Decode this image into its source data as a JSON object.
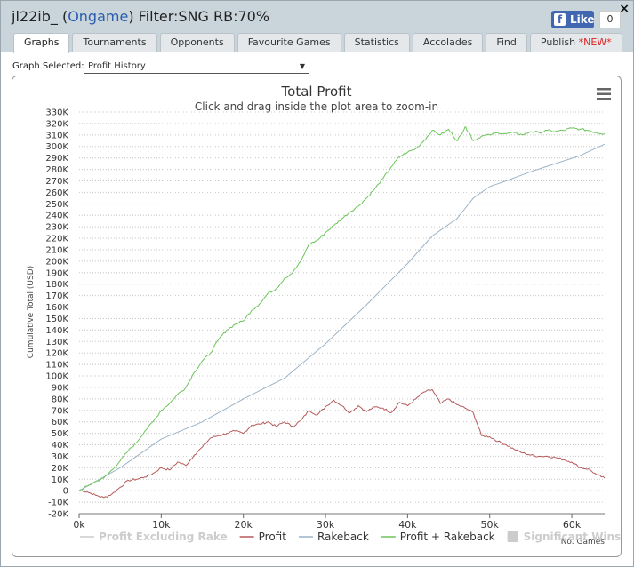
{
  "window": {
    "player": "jl22ib_",
    "open_paren": " (",
    "site": "Ongame",
    "filter_text": ") Filter:SNG RB:70%",
    "close": "×"
  },
  "facebook": {
    "f": "f",
    "like": "Like",
    "count": "0"
  },
  "tabs": [
    {
      "label": "Graphs",
      "active": true
    },
    {
      "label": "Tournaments"
    },
    {
      "label": "Opponents"
    },
    {
      "label": "Favourite Games"
    },
    {
      "label": "Statistics"
    },
    {
      "label": "Accolades"
    },
    {
      "label": "Find"
    },
    {
      "label": "Publish",
      "badge": "*NEW*"
    }
  ],
  "graph_selector": {
    "label": "Graph Selected:",
    "value": "Profit History"
  },
  "chart_data": {
    "type": "line",
    "title": "Total Profit",
    "subtitle": "Click and drag inside the plot area to zoom-in",
    "xlabel": "No. Games",
    "ylabel": "Cumulative Total (USD)",
    "xlim": [
      0,
      64000
    ],
    "ylim": [
      -20000,
      330000
    ],
    "y_ticks": [
      "-20K",
      "-10K",
      "0",
      "10K",
      "20K",
      "30K",
      "40K",
      "50K",
      "60K",
      "70K",
      "80K",
      "90K",
      "100K",
      "110K",
      "120K",
      "130K",
      "140K",
      "150K",
      "160K",
      "170K",
      "180K",
      "190K",
      "200K",
      "210K",
      "220K",
      "230K",
      "240K",
      "250K",
      "260K",
      "270K",
      "280K",
      "290K",
      "300K",
      "310K",
      "320K",
      "330K"
    ],
    "x_ticks": [
      "0k",
      "10k",
      "20k",
      "30k",
      "40k",
      "50k",
      "60k"
    ],
    "grid": "horizontal-dotted",
    "legend": "bottom",
    "legend_items": [
      {
        "name": "Profit Excluding Rake",
        "color": "#cfcfcf",
        "hidden": true
      },
      {
        "name": "Profit",
        "color": "#b55a5a"
      },
      {
        "name": "Rakeback",
        "color": "#9bb3c8"
      },
      {
        "name": "Profit + Rakeback",
        "color": "#6cc55a"
      },
      {
        "name": "Significant Wins",
        "color": "#cccccc",
        "hidden": true,
        "symbol": "square"
      }
    ],
    "series": [
      {
        "name": "Profit",
        "color": "#b55a5a",
        "x": [
          0,
          1000,
          2000,
          3000,
          4000,
          5000,
          6000,
          7000,
          8000,
          9000,
          10000,
          11000,
          12000,
          13000,
          14000,
          15000,
          16000,
          17000,
          18000,
          19000,
          20000,
          21000,
          22000,
          23000,
          24000,
          25000,
          26000,
          27000,
          28000,
          29000,
          30000,
          31000,
          32000,
          33000,
          34000,
          35000,
          36000,
          37000,
          38000,
          39000,
          40000,
          41000,
          42000,
          43000,
          44000,
          45000,
          46000,
          47000,
          48000,
          49000,
          50000,
          51000,
          52000,
          53000,
          54000,
          55000,
          56000,
          57000,
          58000,
          59000,
          60000,
          61000,
          62000,
          63000,
          64000
        ],
        "y": [
          0,
          -1000,
          -4000,
          -6000,
          -3000,
          3000,
          9000,
          10000,
          12000,
          15000,
          20000,
          18000,
          25000,
          22000,
          31000,
          38000,
          46000,
          48000,
          50000,
          52000,
          50000,
          57000,
          58000,
          60000,
          56000,
          60000,
          56000,
          61000,
          70000,
          66000,
          73000,
          79000,
          74000,
          68000,
          74000,
          69000,
          73000,
          72000,
          68000,
          77000,
          74000,
          80000,
          86000,
          88000,
          76000,
          80000,
          75000,
          72000,
          68000,
          48000,
          47000,
          43000,
          40000,
          36000,
          33000,
          31000,
          30000,
          30000,
          29000,
          27000,
          25000,
          20000,
          19000,
          14000,
          11000
        ]
      },
      {
        "name": "Rakeback",
        "color": "#9bb3c8",
        "x": [
          0,
          5000,
          10000,
          15000,
          20000,
          25000,
          30000,
          35000,
          40000,
          43000,
          46000,
          48000,
          50000,
          52000,
          55000,
          58000,
          61000,
          64000
        ],
        "y": [
          0,
          20000,
          45000,
          60000,
          80000,
          98000,
          128000,
          162000,
          198000,
          222000,
          237000,
          255000,
          265000,
          270000,
          278000,
          285000,
          292000,
          302000
        ]
      },
      {
        "name": "Profit + Rakeback",
        "color": "#6cc55a",
        "x": [
          0,
          1000,
          2000,
          3000,
          4000,
          5000,
          6000,
          7000,
          8000,
          9000,
          10000,
          11000,
          12000,
          13000,
          14000,
          15000,
          16000,
          17000,
          18000,
          19000,
          20000,
          21000,
          22000,
          23000,
          24000,
          25000,
          26000,
          27000,
          28000,
          29000,
          30000,
          31000,
          32000,
          33000,
          34000,
          35000,
          36000,
          37000,
          38000,
          39000,
          40000,
          41000,
          42000,
          43000,
          44000,
          45000,
          46000,
          46500,
          47000,
          47500,
          48000,
          49000,
          50000,
          51000,
          52000,
          53000,
          54000,
          55000,
          56000,
          57000,
          58000,
          59000,
          60000,
          61000,
          62000,
          63000,
          64000
        ],
        "y": [
          0,
          4000,
          8000,
          11000,
          18000,
          26000,
          35000,
          42000,
          52000,
          60000,
          70000,
          76000,
          84000,
          90000,
          103000,
          113000,
          120000,
          132000,
          140000,
          145000,
          148000,
          157000,
          163000,
          172000,
          176000,
          185000,
          190000,
          200000,
          215000,
          218000,
          225000,
          231000,
          237000,
          243000,
          248000,
          255000,
          263000,
          272000,
          282000,
          291000,
          295000,
          298000,
          305000,
          314000,
          310000,
          315000,
          305000,
          310000,
          317000,
          312000,
          305000,
          309000,
          310000,
          312000,
          311000,
          312000,
          310000,
          313000,
          312000,
          314000,
          313000,
          314000,
          316000,
          315000,
          314000,
          312000,
          311000
        ]
      }
    ]
  }
}
